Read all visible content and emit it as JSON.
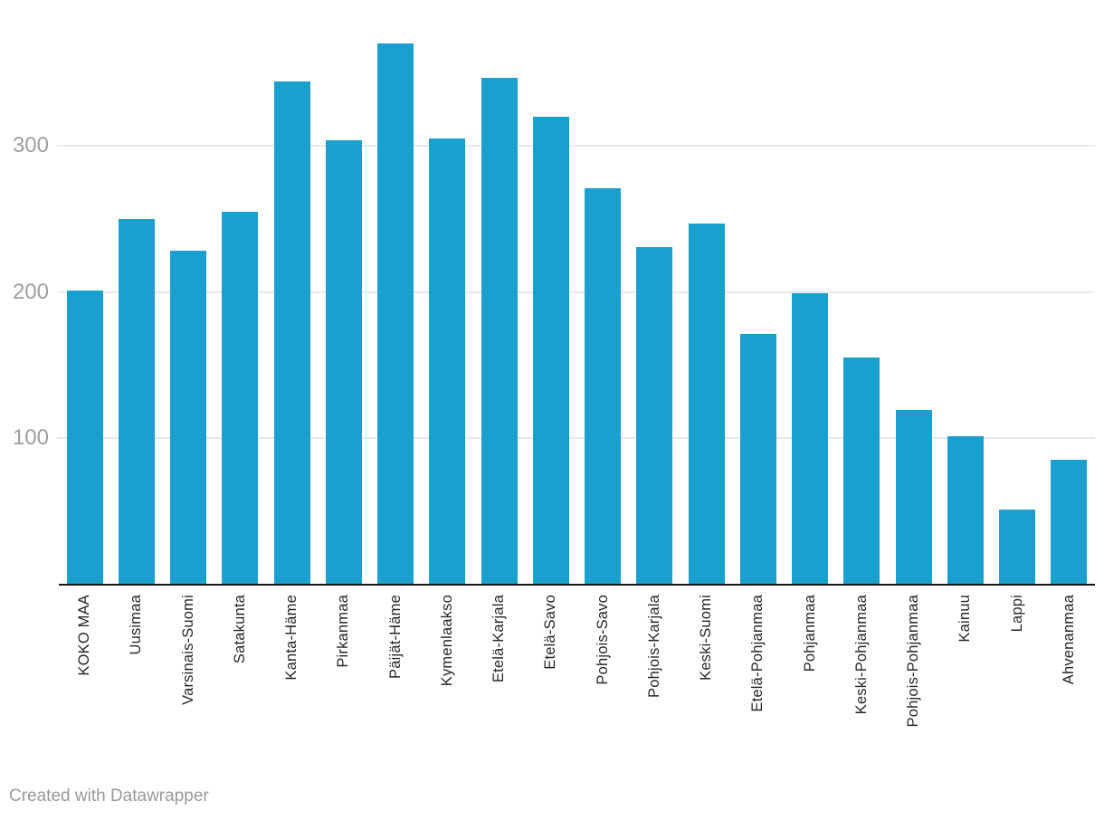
{
  "footer": {
    "credit": "Created with Datawrapper"
  },
  "colors": {
    "background": "#ffffff",
    "bar": "#1AA0CE",
    "gridline": "#e9e9e9",
    "axis_line": "#151515",
    "y_tick_label": "#9e9e9e",
    "x_tick_label": "#262626",
    "footer_text": "#999999"
  },
  "chart_data": {
    "type": "bar",
    "categories": [
      "KOKO MAA",
      "Uusimaa",
      "Varsinais-Suomi",
      "Satakunta",
      "Kanta-Häme",
      "Pirkanmaa",
      "Päijät-Häme",
      "Kymenlaakso",
      "Etelä-Karjala",
      "Etelä-Savo",
      "Pohjois-Savo",
      "Pohjois-Karjala",
      "Keski-Suomi",
      "Etelä-Pohjanmaa",
      "Pohjanmaa",
      "Keski-Pohjanmaa",
      "Pohjois-Pohjanmaa",
      "Kainuu",
      "Lappi",
      "Ahvenanmaa"
    ],
    "values": [
      201,
      250,
      228,
      255,
      344,
      304,
      370,
      305,
      347,
      320,
      271,
      231,
      247,
      171,
      199,
      155,
      119,
      101,
      51,
      85
    ],
    "ylim": [
      0,
      400
    ],
    "yticks": [
      100,
      200,
      300
    ],
    "grid": "horizontal",
    "legend": "none",
    "bar_color": "#1AA0CE"
  }
}
